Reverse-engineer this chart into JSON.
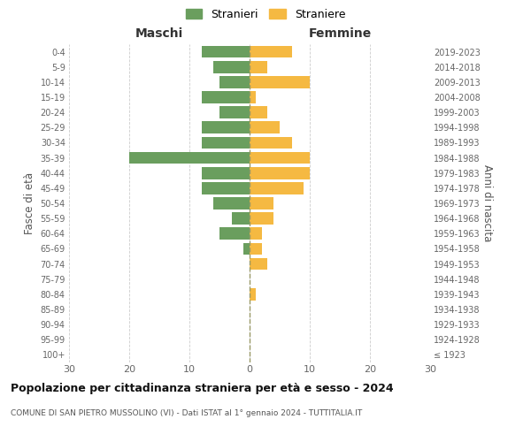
{
  "age_groups": [
    "100+",
    "95-99",
    "90-94",
    "85-89",
    "80-84",
    "75-79",
    "70-74",
    "65-69",
    "60-64",
    "55-59",
    "50-54",
    "45-49",
    "40-44",
    "35-39",
    "30-34",
    "25-29",
    "20-24",
    "15-19",
    "10-14",
    "5-9",
    "0-4"
  ],
  "birth_years": [
    "≤ 1923",
    "1924-1928",
    "1929-1933",
    "1934-1938",
    "1939-1943",
    "1944-1948",
    "1949-1953",
    "1954-1958",
    "1959-1963",
    "1964-1968",
    "1969-1973",
    "1974-1978",
    "1979-1983",
    "1984-1988",
    "1989-1993",
    "1994-1998",
    "1999-2003",
    "2004-2008",
    "2009-2013",
    "2014-2018",
    "2019-2023"
  ],
  "males": [
    0,
    0,
    0,
    0,
    0,
    0,
    0,
    1,
    5,
    3,
    6,
    8,
    8,
    20,
    8,
    8,
    5,
    8,
    5,
    6,
    8
  ],
  "females": [
    0,
    0,
    0,
    0,
    1,
    0,
    3,
    2,
    2,
    4,
    4,
    9,
    10,
    10,
    7,
    5,
    3,
    1,
    10,
    3,
    7
  ],
  "male_color": "#6a9e5e",
  "female_color": "#f5b942",
  "background_color": "#ffffff",
  "grid_color": "#cccccc",
  "title": "Popolazione per cittadinanza straniera per età e sesso - 2024",
  "subtitle": "COMUNE DI SAN PIETRO MUSSOLINO (VI) - Dati ISTAT al 1° gennaio 2024 - TUTTITALIA.IT",
  "ylabel_left": "Fasce di età",
  "ylabel_right": "Anni di nascita",
  "xlabel_left": "Maschi",
  "xlabel_right": "Femmine",
  "legend_male": "Stranieri",
  "legend_female": "Straniere",
  "xlim": 30,
  "bar_height": 0.8
}
